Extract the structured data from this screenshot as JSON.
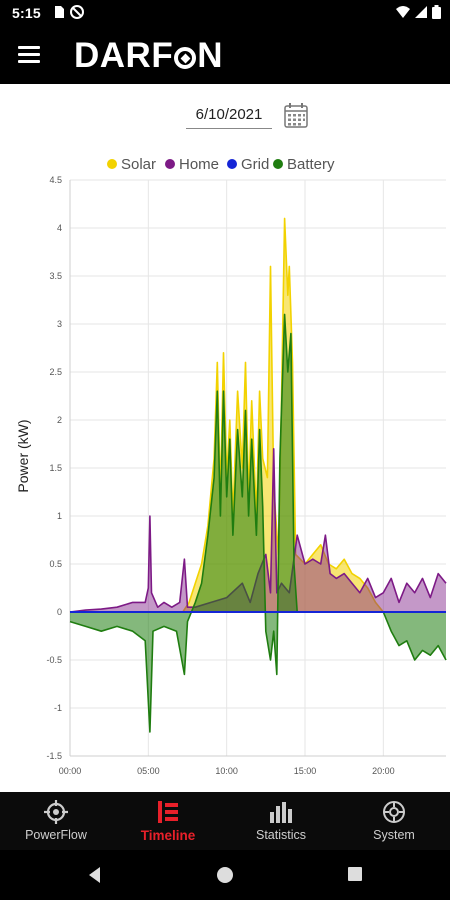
{
  "status": {
    "time": "5:15"
  },
  "app": {
    "brand_left": "DARF",
    "brand_right": "N"
  },
  "date": {
    "value": "6/10/2021"
  },
  "colors": {
    "solar": "#f2d200",
    "home": "#7d1a86",
    "grid": "#1525d6",
    "battery": "#1f7d10",
    "active": "#e8202a"
  },
  "chart_data": {
    "type": "line",
    "ylabel": "Power (kW)",
    "xlabel": "",
    "ylim": [
      -1.5,
      4.5
    ],
    "yticks": [
      "4.5",
      "4",
      "3.5",
      "3",
      "2.5",
      "2",
      "1.5",
      "1",
      "0.5",
      "0",
      "-0.5",
      "-1",
      "-1.5"
    ],
    "xticks": [
      "00:00",
      "05:00",
      "10:00",
      "15:00",
      "20:00"
    ],
    "xrange_hours": [
      0,
      24
    ],
    "legend_position": "top",
    "grid": true,
    "series": [
      {
        "name": "Solar",
        "color": "#f2d200",
        "points": [
          [
            0,
            0
          ],
          [
            7.2,
            0
          ],
          [
            7.6,
            0.1
          ],
          [
            8.0,
            0.3
          ],
          [
            8.4,
            0.5
          ],
          [
            8.8,
            0.9
          ],
          [
            9.2,
            1.6
          ],
          [
            9.4,
            2.6
          ],
          [
            9.6,
            1.2
          ],
          [
            9.8,
            2.7
          ],
          [
            10.0,
            1.4
          ],
          [
            10.2,
            2.0
          ],
          [
            10.4,
            1.0
          ],
          [
            10.7,
            2.3
          ],
          [
            11.0,
            1.5
          ],
          [
            11.2,
            2.6
          ],
          [
            11.4,
            1.2
          ],
          [
            11.6,
            2.2
          ],
          [
            11.9,
            1.0
          ],
          [
            12.1,
            2.3
          ],
          [
            12.3,
            1.6
          ],
          [
            12.6,
            1.4
          ],
          [
            12.8,
            3.6
          ],
          [
            13.0,
            1.3
          ],
          [
            13.3,
            0.6
          ],
          [
            13.5,
            2.2
          ],
          [
            13.7,
            4.1
          ],
          [
            13.9,
            3.3
          ],
          [
            14.0,
            3.6
          ],
          [
            14.2,
            2.6
          ],
          [
            14.4,
            0.6
          ],
          [
            15.0,
            0.5
          ],
          [
            15.5,
            0.6
          ],
          [
            16.0,
            0.7
          ],
          [
            16.5,
            0.5
          ],
          [
            17.0,
            0.45
          ],
          [
            17.5,
            0.55
          ],
          [
            18.0,
            0.4
          ],
          [
            18.5,
            0.35
          ],
          [
            19.0,
            0.25
          ],
          [
            19.5,
            0.1
          ],
          [
            20.0,
            0
          ],
          [
            24,
            0
          ]
        ]
      },
      {
        "name": "Home",
        "color": "#7d1a86",
        "points": [
          [
            0,
            0
          ],
          [
            1,
            0.02
          ],
          [
            2,
            0.03
          ],
          [
            3,
            0.05
          ],
          [
            4,
            0.1
          ],
          [
            4.8,
            0.1
          ],
          [
            5.0,
            0.25
          ],
          [
            5.1,
            1.0
          ],
          [
            5.2,
            0.2
          ],
          [
            5.6,
            0.05
          ],
          [
            6.0,
            0.1
          ],
          [
            6.5,
            0.05
          ],
          [
            7.0,
            0.1
          ],
          [
            7.3,
            0.55
          ],
          [
            7.5,
            0.05
          ],
          [
            8.0,
            0.05
          ],
          [
            9.0,
            0.1
          ],
          [
            10.0,
            0.15
          ],
          [
            11.0,
            0.3
          ],
          [
            11.5,
            0.1
          ],
          [
            12.0,
            0.4
          ],
          [
            12.5,
            0.6
          ],
          [
            12.8,
            0.2
          ],
          [
            13.0,
            1.7
          ],
          [
            13.2,
            0.2
          ],
          [
            13.5,
            0.3
          ],
          [
            14.0,
            0.2
          ],
          [
            14.5,
            0.8
          ],
          [
            15.0,
            0.5
          ],
          [
            15.5,
            0.55
          ],
          [
            16.0,
            0.5
          ],
          [
            16.3,
            0.8
          ],
          [
            16.6,
            0.4
          ],
          [
            17.0,
            0.35
          ],
          [
            17.5,
            0.4
          ],
          [
            18.0,
            0.3
          ],
          [
            18.5,
            0.2
          ],
          [
            19.0,
            0.35
          ],
          [
            19.5,
            0.15
          ],
          [
            20.0,
            0.2
          ],
          [
            20.5,
            0.35
          ],
          [
            21.0,
            0.1
          ],
          [
            21.5,
            0.3
          ],
          [
            22.0,
            0.2
          ],
          [
            22.5,
            0.35
          ],
          [
            23.0,
            0.15
          ],
          [
            23.5,
            0.4
          ],
          [
            24,
            0.3
          ]
        ]
      },
      {
        "name": "Grid",
        "color": "#1525d6",
        "points": [
          [
            0,
            0
          ],
          [
            24,
            0
          ]
        ]
      },
      {
        "name": "Battery",
        "color": "#1f7d10",
        "points": [
          [
            0,
            -0.1
          ],
          [
            1,
            -0.15
          ],
          [
            2,
            -0.2
          ],
          [
            3,
            -0.15
          ],
          [
            4,
            -0.2
          ],
          [
            4.8,
            -0.3
          ],
          [
            5.1,
            -1.25
          ],
          [
            5.3,
            -0.2
          ],
          [
            6.0,
            -0.15
          ],
          [
            6.8,
            -0.2
          ],
          [
            7.3,
            -0.65
          ],
          [
            7.5,
            -0.1
          ],
          [
            8.0,
            0.1
          ],
          [
            8.4,
            0.3
          ],
          [
            8.8,
            0.8
          ],
          [
            9.2,
            1.4
          ],
          [
            9.4,
            2.3
          ],
          [
            9.6,
            1.0
          ],
          [
            9.8,
            2.3
          ],
          [
            10.0,
            1.2
          ],
          [
            10.2,
            1.8
          ],
          [
            10.4,
            0.8
          ],
          [
            10.7,
            1.9
          ],
          [
            11.0,
            1.2
          ],
          [
            11.2,
            2.1
          ],
          [
            11.4,
            1.0
          ],
          [
            11.6,
            1.8
          ],
          [
            11.9,
            0.8
          ],
          [
            12.1,
            1.9
          ],
          [
            12.3,
            1.1
          ],
          [
            12.5,
            -0.2
          ],
          [
            12.8,
            -0.5
          ],
          [
            13.0,
            -0.2
          ],
          [
            13.2,
            -0.65
          ],
          [
            13.4,
            1.6
          ],
          [
            13.7,
            3.1
          ],
          [
            13.9,
            2.5
          ],
          [
            14.1,
            2.9
          ],
          [
            14.3,
            0.5
          ],
          [
            14.5,
            0
          ],
          [
            20.0,
            0
          ],
          [
            20.5,
            -0.2
          ],
          [
            21.0,
            -0.35
          ],
          [
            21.5,
            -0.3
          ],
          [
            22.0,
            -0.5
          ],
          [
            22.5,
            -0.4
          ],
          [
            23.0,
            -0.45
          ],
          [
            23.5,
            -0.35
          ],
          [
            24,
            -0.5
          ]
        ]
      }
    ]
  },
  "nav": {
    "items": [
      {
        "label": "PowerFlow",
        "icon": "crosshair-icon"
      },
      {
        "label": "Timeline",
        "icon": "timeline-icon"
      },
      {
        "label": "Statistics",
        "icon": "bar-chart-icon"
      },
      {
        "label": "System",
        "icon": "system-icon"
      }
    ],
    "active_index": 1
  }
}
